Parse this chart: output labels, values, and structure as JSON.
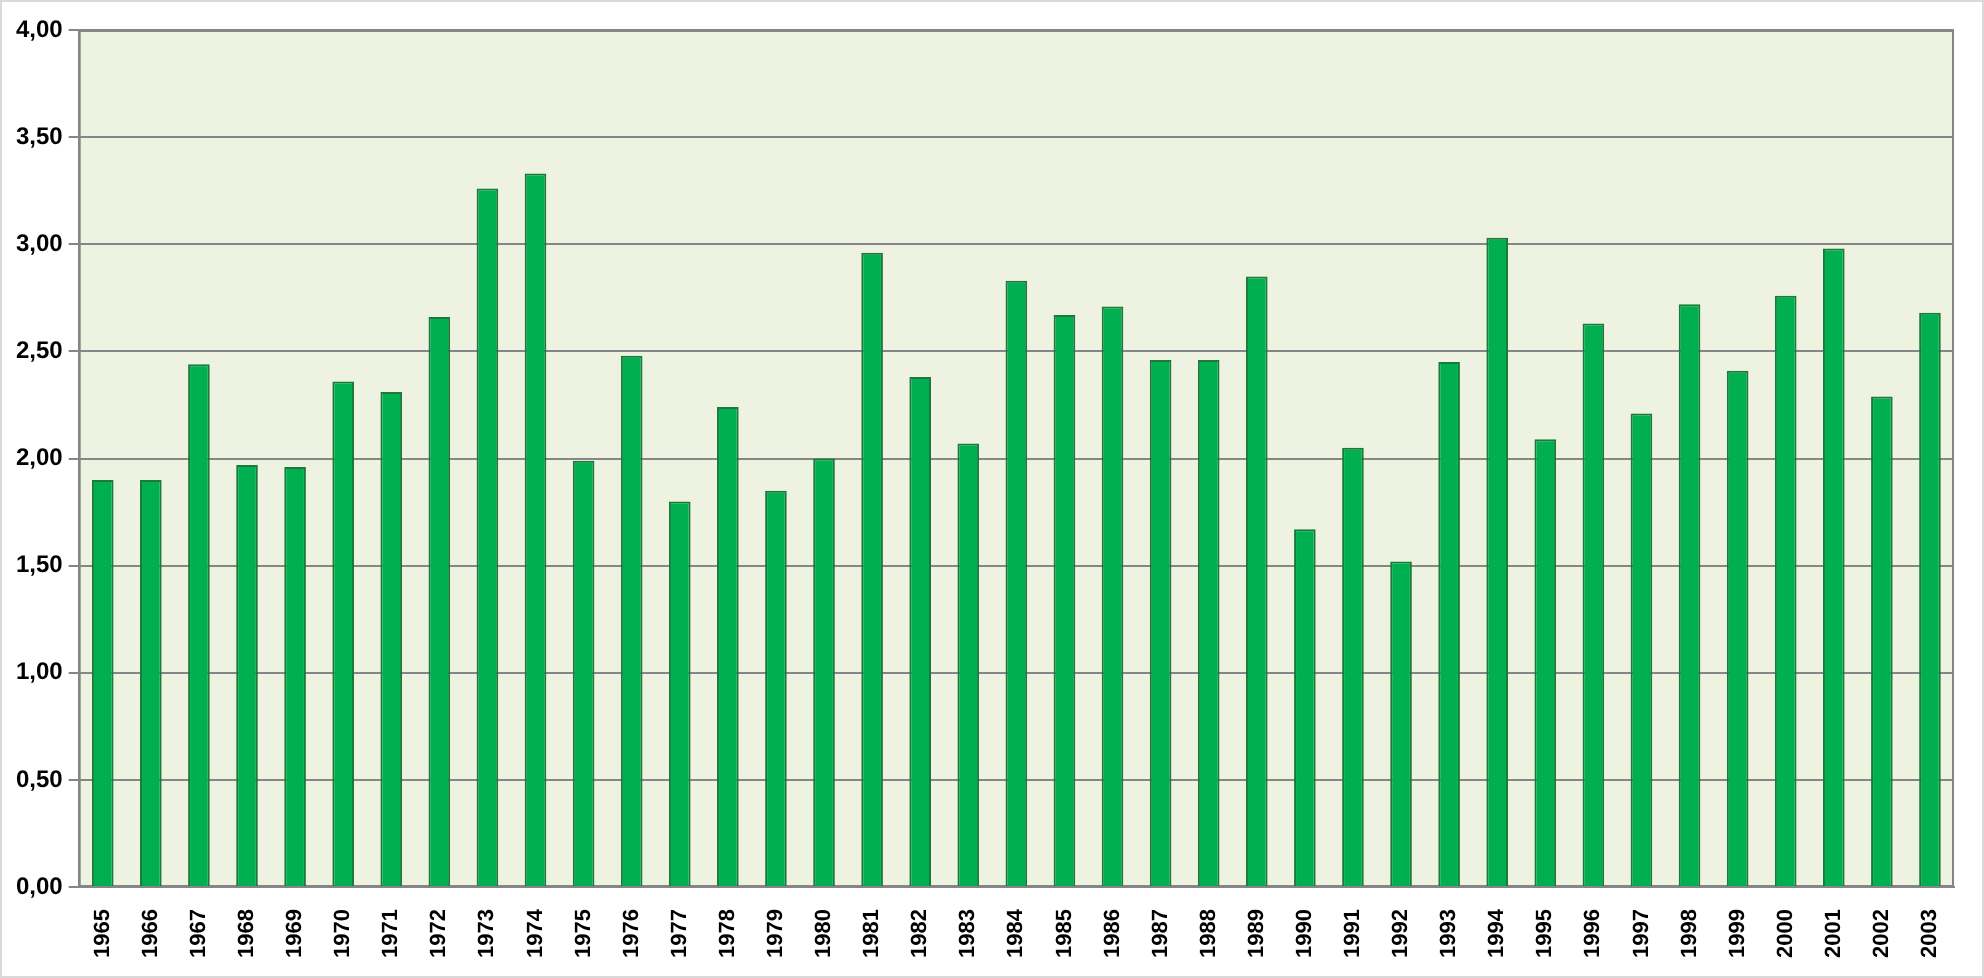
{
  "chart_data": {
    "type": "bar",
    "categories": [
      "1965",
      "1966",
      "1967",
      "1968",
      "1969",
      "1970",
      "1971",
      "1972",
      "1973",
      "1974",
      "1975",
      "1976",
      "1977",
      "1978",
      "1979",
      "1980",
      "1981",
      "1982",
      "1983",
      "1984",
      "1985",
      "1986",
      "1987",
      "1988",
      "1989",
      "1990",
      "1991",
      "1992",
      "1993",
      "1994",
      "1995",
      "1996",
      "1997",
      "1998",
      "1999",
      "2000",
      "2001",
      "2002",
      "2003"
    ],
    "values": [
      1.9,
      1.9,
      2.44,
      1.97,
      1.96,
      2.36,
      2.31,
      2.66,
      3.26,
      3.33,
      1.99,
      2.48,
      1.8,
      2.24,
      1.85,
      2.0,
      2.96,
      2.38,
      2.07,
      2.83,
      2.67,
      2.71,
      2.46,
      2.46,
      2.85,
      1.67,
      2.05,
      1.52,
      2.45,
      3.03,
      2.09,
      2.63,
      2.21,
      2.72,
      2.41,
      2.76,
      2.98,
      2.29,
      2.68
    ],
    "color": "#00b050",
    "ylim": [
      0,
      4
    ],
    "yticks": [
      {
        "value": 0,
        "label": "0,00"
      },
      {
        "value": 0.5,
        "label": "0,50"
      },
      {
        "value": 1,
        "label": "1,00"
      },
      {
        "value": 1.5,
        "label": "1,50"
      },
      {
        "value": 2,
        "label": "2,00"
      },
      {
        "value": 2.5,
        "label": "2,50"
      },
      {
        "value": 3,
        "label": "3,00"
      },
      {
        "value": 3.5,
        "label": "3,50"
      },
      {
        "value": 4,
        "label": "4,00"
      }
    ],
    "grid": "y"
  }
}
